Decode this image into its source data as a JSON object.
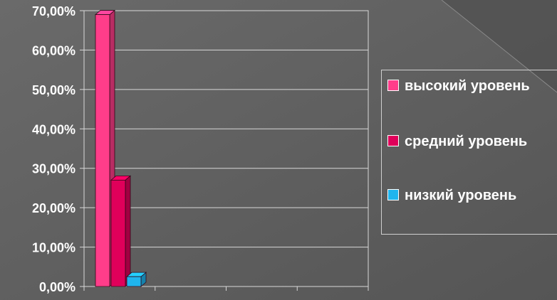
{
  "chart_data": {
    "type": "bar",
    "title": "",
    "xlabel": "",
    "ylabel": "",
    "ylim": [
      0,
      0.7
    ],
    "y_ticks": [
      "0,00%",
      "10,00%",
      "20,00%",
      "30,00%",
      "40,00%",
      "50,00%",
      "60,00%",
      "70,00%"
    ],
    "grid": true,
    "legend_position": "right",
    "series": [
      {
        "name": "высокий уровень",
        "values": [
          0.69
        ],
        "color": "#ff3d8a"
      },
      {
        "name": "средний уровень",
        "values": [
          0.27
        ],
        "color": "#e0005a"
      },
      {
        "name": "низкий уровень",
        "values": [
          0.025
        ],
        "color": "#1fb5ee"
      }
    ]
  }
}
